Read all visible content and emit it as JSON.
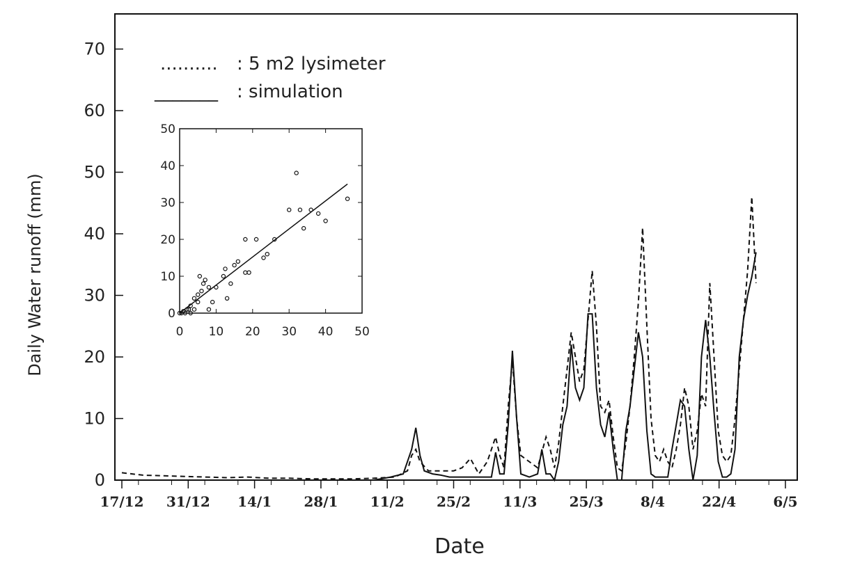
{
  "chart_data": [
    {
      "type": "line",
      "xlabel": "Date",
      "ylabel": "Daily Water runoff (mm)",
      "ylim": [
        0,
        75
      ],
      "yticks": [
        0,
        10,
        20,
        30,
        40,
        50,
        60,
        70
      ],
      "x_ticks": [
        "17/12",
        "31/12",
        "14/1",
        "28/1",
        "11/2",
        "25/2",
        "11/3",
        "25/3",
        "8/4",
        "22/4",
        "6/5"
      ],
      "legend": [
        {
          "symbol": "..........",
          "label": ": 5 m2 lysimeter"
        },
        {
          "symbol": "_______",
          "label": ": simulation"
        }
      ],
      "series": [
        {
          "name": "5 m2 lysimeter",
          "style": "dashed",
          "points": [
            [
              0,
              1.2
            ],
            [
              5,
              0.8
            ],
            [
              10,
              0.7
            ],
            [
              15,
              0.6
            ],
            [
              20,
              0.5
            ],
            [
              25,
              0.4
            ],
            [
              30,
              0.5
            ],
            [
              35,
              0.3
            ],
            [
              40,
              0.3
            ],
            [
              45,
              0.2
            ],
            [
              50,
              0.2
            ],
            [
              55,
              0.2
            ],
            [
              60,
              0.3
            ],
            [
              65,
              0.5
            ],
            [
              68,
              1.5
            ],
            [
              69,
              4
            ],
            [
              70,
              5
            ],
            [
              71,
              3
            ],
            [
              73,
              1.5
            ],
            [
              75,
              1.5
            ],
            [
              77,
              1.5
            ],
            [
              79,
              1.5
            ],
            [
              81,
              2
            ],
            [
              83,
              3.5
            ],
            [
              85,
              1
            ],
            [
              87,
              3
            ],
            [
              89,
              7
            ],
            [
              90,
              4
            ],
            [
              91,
              2
            ],
            [
              92,
              12
            ],
            [
              93,
              19.5
            ],
            [
              94,
              10
            ],
            [
              95,
              4
            ],
            [
              97,
              3
            ],
            [
              99,
              2
            ],
            [
              101,
              7
            ],
            [
              102,
              5
            ],
            [
              103,
              2
            ],
            [
              104,
              6
            ],
            [
              105,
              12
            ],
            [
              106,
              18
            ],
            [
              107,
              24
            ],
            [
              108,
              20
            ],
            [
              109,
              16
            ],
            [
              110,
              18
            ],
            [
              111,
              26
            ],
            [
              112,
              34
            ],
            [
              113,
              25
            ],
            [
              114,
              12
            ],
            [
              115,
              11
            ],
            [
              116,
              13
            ],
            [
              117,
              7
            ],
            [
              118,
              2
            ],
            [
              119,
              1.5
            ],
            [
              120,
              6
            ],
            [
              121,
              12
            ],
            [
              122,
              20
            ],
            [
              123,
              29
            ],
            [
              124,
              41
            ],
            [
              125,
              25
            ],
            [
              126,
              10
            ],
            [
              127,
              4
            ],
            [
              128,
              3
            ],
            [
              129,
              5
            ],
            [
              130,
              3
            ],
            [
              131,
              2
            ],
            [
              132,
              5
            ],
            [
              133,
              9
            ],
            [
              134,
              15
            ],
            [
              135,
              12
            ],
            [
              136,
              5
            ],
            [
              137,
              8
            ],
            [
              138,
              14
            ],
            [
              139,
              12
            ],
            [
              140,
              32
            ],
            [
              141,
              20
            ],
            [
              142,
              8
            ],
            [
              143,
              4
            ],
            [
              144,
              3
            ],
            [
              145,
              4
            ],
            [
              146,
              10
            ],
            [
              147,
              18
            ],
            [
              148,
              26
            ],
            [
              149,
              34
            ],
            [
              150,
              46
            ],
            [
              151,
              32
            ]
          ]
        },
        {
          "name": "simulation",
          "style": "solid",
          "points": [
            [
              0,
              0
            ],
            [
              60,
              0
            ],
            [
              64,
              0.5
            ],
            [
              67,
              1
            ],
            [
              69,
              5
            ],
            [
              70,
              8.5
            ],
            [
              71,
              4
            ],
            [
              72,
              1.5
            ],
            [
              74,
              1
            ],
            [
              76,
              0.8
            ],
            [
              78,
              0.5
            ],
            [
              81,
              0.5
            ],
            [
              84,
              0.5
            ],
            [
              86,
              0.5
            ],
            [
              88,
              0.5
            ],
            [
              89,
              4.5
            ],
            [
              90,
              1
            ],
            [
              91,
              1
            ],
            [
              92,
              9
            ],
            [
              93,
              21
            ],
            [
              94,
              10
            ],
            [
              95,
              1
            ],
            [
              97,
              0.5
            ],
            [
              99,
              1
            ],
            [
              100,
              5
            ],
            [
              101,
              1
            ],
            [
              102,
              1
            ],
            [
              103,
              0
            ],
            [
              104,
              3
            ],
            [
              105,
              9
            ],
            [
              106,
              12
            ],
            [
              107,
              22
            ],
            [
              108,
              15
            ],
            [
              109,
              13
            ],
            [
              110,
              15
            ],
            [
              111,
              27
            ],
            [
              112,
              27
            ],
            [
              113,
              15
            ],
            [
              114,
              9
            ],
            [
              115,
              7
            ],
            [
              116,
              11
            ],
            [
              117,
              5
            ],
            [
              118,
              0
            ],
            [
              119,
              0
            ],
            [
              120,
              8
            ],
            [
              121,
              12
            ],
            [
              122,
              18
            ],
            [
              123,
              24
            ],
            [
              124,
              20
            ],
            [
              125,
              8
            ],
            [
              126,
              1
            ],
            [
              127,
              0.5
            ],
            [
              128,
              0.5
            ],
            [
              129,
              0.5
            ],
            [
              130,
              0.5
            ],
            [
              131,
              5
            ],
            [
              132,
              9
            ],
            [
              133,
              13
            ],
            [
              134,
              12
            ],
            [
              135,
              5
            ],
            [
              136,
              0
            ],
            [
              137,
              4
            ],
            [
              138,
              20
            ],
            [
              139,
              26
            ],
            [
              140,
              20
            ],
            [
              141,
              11
            ],
            [
              142,
              3
            ],
            [
              143,
              0.5
            ],
            [
              144,
              0.5
            ],
            [
              145,
              1
            ],
            [
              146,
              5
            ],
            [
              147,
              20
            ],
            [
              148,
              26
            ],
            [
              149,
              30
            ],
            [
              150,
              33
            ],
            [
              151,
              37
            ]
          ]
        }
      ]
    },
    {
      "type": "scatter",
      "xlim": [
        0,
        50
      ],
      "ylim": [
        0,
        50
      ],
      "xticks": [
        0,
        10,
        20,
        30,
        40,
        50
      ],
      "yticks": [
        0,
        10,
        20,
        30,
        40,
        50
      ],
      "points": [
        [
          0,
          0
        ],
        [
          0.5,
          0
        ],
        [
          1,
          0.5
        ],
        [
          1.5,
          0
        ],
        [
          2,
          1
        ],
        [
          2.5,
          1
        ],
        [
          3,
          2
        ],
        [
          3,
          0
        ],
        [
          4,
          1
        ],
        [
          4,
          4
        ],
        [
          5,
          3
        ],
        [
          5,
          5
        ],
        [
          5.5,
          10
        ],
        [
          6,
          6
        ],
        [
          6.5,
          8
        ],
        [
          7,
          9
        ],
        [
          8,
          7
        ],
        [
          8,
          1
        ],
        [
          9,
          3
        ],
        [
          10,
          7
        ],
        [
          12,
          10
        ],
        [
          12.5,
          12
        ],
        [
          13,
          4
        ],
        [
          14,
          8
        ],
        [
          15,
          13
        ],
        [
          16,
          14
        ],
        [
          18,
          20
        ],
        [
          18,
          11
        ],
        [
          19,
          11
        ],
        [
          21,
          20
        ],
        [
          23,
          15
        ],
        [
          24,
          16
        ],
        [
          26,
          20
        ],
        [
          30,
          28
        ],
        [
          32,
          38
        ],
        [
          33,
          28
        ],
        [
          34,
          23
        ],
        [
          36,
          28
        ],
        [
          38,
          27
        ],
        [
          40,
          25
        ],
        [
          46,
          31
        ]
      ],
      "fit_line": [
        [
          0,
          0
        ],
        [
          46,
          35
        ]
      ]
    }
  ]
}
